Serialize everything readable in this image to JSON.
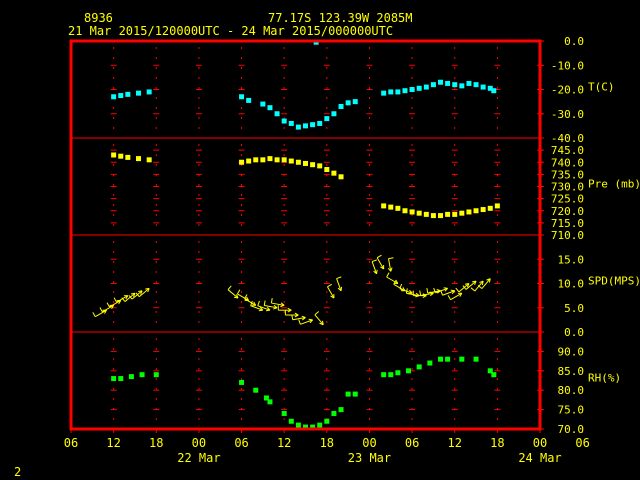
{
  "header": {
    "station_id": "8936",
    "location": "77.17S  123.39W  2085M",
    "time_range": "21 Mar 2015/120000UTC - 24 Mar 2015/000000UTC"
  },
  "footer": {
    "page_number": "2"
  },
  "colors": {
    "background": "#000000",
    "frame": "#ff0000",
    "text": "#ffff00",
    "temperature": "#00ffff",
    "pressure": "#ffff00",
    "wind": "#ffff00",
    "humidity": "#00ff00"
  },
  "chart_data": {
    "type": "scatter",
    "x_axis": {
      "unit": "hours from 21 Mar 2015 06:00 UTC",
      "range": [
        0,
        66
      ],
      "ticks": [
        "06",
        "12",
        "18",
        "00",
        "06",
        "12",
        "18",
        "00",
        "06",
        "12",
        "18",
        "00",
        "06"
      ],
      "dates": [
        "22 Mar",
        "23 Mar",
        "24 Mar"
      ]
    },
    "panels": [
      {
        "id": "temperature",
        "label": "T(C)",
        "ylim": [
          -40,
          0
        ],
        "ticks": [
          "0.0",
          "-10.0",
          "-20.0",
          "-30.0",
          "-40.0"
        ],
        "tick_values": [
          0,
          -10,
          -20,
          -30,
          -40
        ],
        "points": [
          [
            6,
            -23
          ],
          [
            7,
            -22.5
          ],
          [
            8,
            -22
          ],
          [
            9.5,
            -21.5
          ],
          [
            11,
            -21
          ],
          [
            24,
            -23
          ],
          [
            25,
            -24.5
          ],
          [
            27,
            -26
          ],
          [
            28,
            -27.5
          ],
          [
            29,
            -30
          ],
          [
            30,
            -33
          ],
          [
            31,
            -34
          ],
          [
            32,
            -35.5
          ],
          [
            33,
            -35
          ],
          [
            34,
            -34.5
          ],
          [
            35,
            -34
          ],
          [
            36,
            -32
          ],
          [
            37,
            -30
          ],
          [
            38,
            -27
          ],
          [
            39,
            -25.5
          ],
          [
            40,
            -25
          ],
          [
            34.5,
            -0.5
          ],
          [
            44,
            -21.5
          ],
          [
            45,
            -21
          ],
          [
            46,
            -21
          ],
          [
            47,
            -20.5
          ],
          [
            48,
            -20
          ],
          [
            49,
            -19.5
          ],
          [
            50,
            -19
          ],
          [
            51,
            -18
          ],
          [
            52,
            -17
          ],
          [
            53,
            -17.5
          ],
          [
            54,
            -18
          ],
          [
            55,
            -18.5
          ],
          [
            56,
            -17.5
          ],
          [
            57,
            -18
          ],
          [
            58,
            -19
          ],
          [
            59,
            -19.5
          ],
          [
            59.5,
            -20.5
          ]
        ]
      },
      {
        "id": "pressure",
        "label": "Pre (mb)",
        "ylim": [
          710,
          750
        ],
        "ticks": [
          "745.0",
          "740.0",
          "735.0",
          "730.0",
          "725.0",
          "720.0",
          "715.0",
          "710.0"
        ],
        "tick_values": [
          745,
          740,
          735,
          730,
          725,
          720,
          715,
          710
        ],
        "points": [
          [
            6,
            743
          ],
          [
            7,
            742.5
          ],
          [
            8,
            742
          ],
          [
            9.5,
            741.5
          ],
          [
            11,
            741
          ],
          [
            24,
            740
          ],
          [
            25,
            740.5
          ],
          [
            26,
            741
          ],
          [
            27,
            741
          ],
          [
            28,
            741.5
          ],
          [
            29,
            741
          ],
          [
            30,
            741
          ],
          [
            31,
            740.5
          ],
          [
            32,
            740
          ],
          [
            33,
            739.5
          ],
          [
            34,
            739
          ],
          [
            35,
            738.5
          ],
          [
            36,
            737
          ],
          [
            37,
            735.5
          ],
          [
            38,
            734
          ],
          [
            44,
            722
          ],
          [
            45,
            721.5
          ],
          [
            46,
            721
          ],
          [
            47,
            720
          ],
          [
            48,
            719.5
          ],
          [
            49,
            719
          ],
          [
            50,
            718.5
          ],
          [
            51,
            718
          ],
          [
            52,
            718
          ],
          [
            53,
            718.5
          ],
          [
            54,
            718.5
          ],
          [
            55,
            719
          ],
          [
            56,
            719.5
          ],
          [
            57,
            720
          ],
          [
            58,
            720.5
          ],
          [
            59,
            721
          ],
          [
            60,
            722
          ]
        ]
      },
      {
        "id": "wind",
        "label": "SPD(MPS)",
        "ylim": [
          0,
          20
        ],
        "ticks": [
          "15.0",
          "10.0",
          "5.0",
          "0.0"
        ],
        "tick_values": [
          15,
          10,
          5,
          0
        ],
        "barbs": [
          [
            5,
            4.5,
            240
          ],
          [
            6,
            5.5,
            240
          ],
          [
            7,
            6.5,
            240
          ],
          [
            8,
            7.5,
            240
          ],
          [
            9,
            8,
            230
          ],
          [
            10,
            8.5,
            230
          ],
          [
            11,
            9,
            230
          ],
          [
            23.5,
            7,
            310
          ],
          [
            25,
            6.5,
            300
          ],
          [
            26,
            5.5,
            300
          ],
          [
            27,
            4.5,
            290
          ],
          [
            28,
            4.5,
            290
          ],
          [
            29,
            5,
            280
          ],
          [
            30,
            5.5,
            280
          ],
          [
            31,
            4.5,
            270
          ],
          [
            32,
            3.5,
            270
          ],
          [
            33,
            3,
            260
          ],
          [
            34,
            2.5,
            250
          ],
          [
            35.5,
            1.5,
            320
          ],
          [
            37,
            7,
            330
          ],
          [
            38,
            8.5,
            340
          ],
          [
            43,
            12,
            340
          ],
          [
            44,
            13,
            330
          ],
          [
            45,
            12.5,
            350
          ],
          [
            46,
            10,
            300
          ],
          [
            47,
            8.5,
            300
          ],
          [
            48,
            8,
            290
          ],
          [
            49,
            7.5,
            280
          ],
          [
            50,
            7.5,
            270
          ],
          [
            51,
            8,
            260
          ],
          [
            52,
            8.5,
            260
          ],
          [
            53,
            9,
            250
          ],
          [
            54,
            8.5,
            250
          ],
          [
            55,
            8,
            240
          ],
          [
            56,
            10,
            230
          ],
          [
            57,
            10.5,
            230
          ],
          [
            58,
            10.5,
            220
          ],
          [
            59,
            11,
            220
          ]
        ]
      },
      {
        "id": "humidity",
        "label": "RH(%)",
        "ylim": [
          70,
          95
        ],
        "ticks": [
          "90.0",
          "85.0",
          "80.0",
          "75.0",
          "70.0"
        ],
        "tick_values": [
          90,
          85,
          80,
          75,
          70
        ],
        "points": [
          [
            6,
            83
          ],
          [
            7,
            83
          ],
          [
            8.5,
            83.5
          ],
          [
            10,
            84
          ],
          [
            12,
            84
          ],
          [
            24,
            82
          ],
          [
            26,
            80
          ],
          [
            27.5,
            78
          ],
          [
            28,
            77
          ],
          [
            30,
            74
          ],
          [
            31,
            72
          ],
          [
            32,
            71
          ],
          [
            33,
            70.5
          ],
          [
            34,
            70.5
          ],
          [
            35,
            71
          ],
          [
            36,
            72
          ],
          [
            37,
            74
          ],
          [
            38,
            75
          ],
          [
            39,
            79
          ],
          [
            40,
            79
          ],
          [
            44,
            84
          ],
          [
            45,
            84
          ],
          [
            46,
            84.5
          ],
          [
            47.5,
            85
          ],
          [
            49,
            86
          ],
          [
            50.5,
            87
          ],
          [
            52,
            88
          ],
          [
            53,
            88
          ],
          [
            55,
            88
          ],
          [
            57,
            88
          ],
          [
            59,
            85
          ],
          [
            59.5,
            84
          ]
        ]
      }
    ]
  }
}
